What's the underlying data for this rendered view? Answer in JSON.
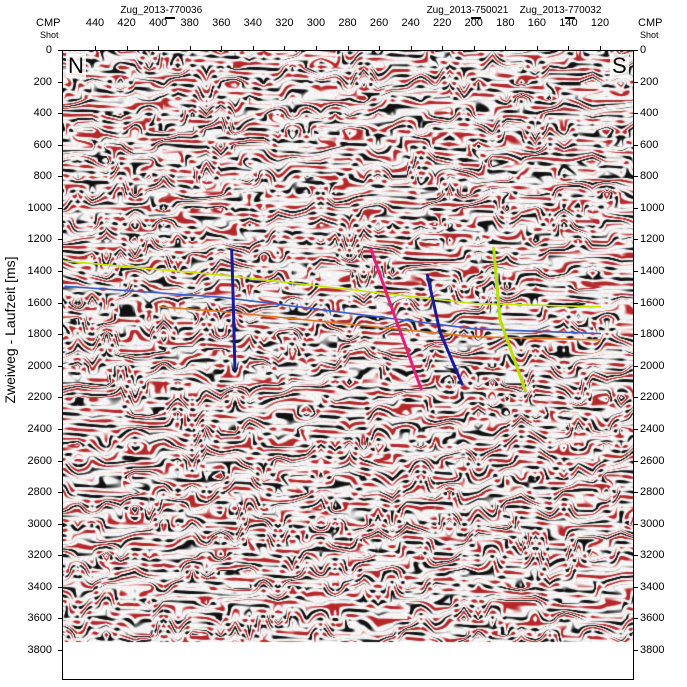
{
  "header": {
    "cmp_label_left": "CMP",
    "shot_label_left": "Shot",
    "cmp_label_right": "CMP",
    "shot_label_right": "Shot"
  },
  "cmp_ticks": [
    "440",
    "420",
    "400",
    "380",
    "360",
    "340",
    "320",
    "300",
    "280",
    "260",
    "240",
    "220",
    "200",
    "180",
    "160",
    "140",
    "120"
  ],
  "shot_points": [
    {
      "label": "Zug_2013-770036",
      "cmp": 398
    },
    {
      "label": "Zug_2013-750021",
      "cmp": 204
    },
    {
      "label": "Zug_2013-770032",
      "cmp": 145
    }
  ],
  "time_ticks": [
    "0",
    "200",
    "400",
    "600",
    "800",
    "1000",
    "1200",
    "1400",
    "1600",
    "1800",
    "2000",
    "2200",
    "2400",
    "2600",
    "2800",
    "3000",
    "3200",
    "3400",
    "3600",
    "3800"
  ],
  "y_axis_label": "Zweiweg - Laufzeit [ms]",
  "compass": {
    "left": "N",
    "right": "S"
  },
  "colors": {
    "reflector_yellow": "#c8e600",
    "reflector_blue": "#3a5fd0",
    "reflector_orange": "#e07820",
    "fault_blue": "#1a1a9c",
    "fault_magenta": "#e0207a",
    "fault_yellowgreen": "#b8e000",
    "seismic_red": "#b4282a",
    "seismic_black": "#111111"
  },
  "interpretation": {
    "horizons": [
      {
        "name": "yellow",
        "points": [
          [
            460,
            1330
          ],
          [
            360,
            1420
          ],
          [
            200,
            1600
          ],
          [
            120,
            1620
          ]
        ]
      },
      {
        "name": "blue",
        "points": [
          [
            460,
            1490
          ],
          [
            360,
            1560
          ],
          [
            200,
            1760
          ],
          [
            120,
            1790
          ]
        ]
      },
      {
        "name": "orange",
        "points": [
          [
            400,
            1620
          ],
          [
            360,
            1650
          ],
          [
            200,
            1810
          ],
          [
            120,
            1830
          ]
        ]
      }
    ],
    "faults": [
      {
        "name": "blue-1",
        "color": "fault_blue",
        "points": [
          [
            354,
            1260
          ],
          [
            353,
            1600
          ],
          [
            352,
            2010
          ]
        ]
      },
      {
        "name": "magenta",
        "color": "fault_magenta",
        "points": [
          [
            266,
            1250
          ],
          [
            250,
            1700
          ],
          [
            234,
            2140
          ]
        ]
      },
      {
        "name": "blue-2",
        "color": "fault_blue",
        "points": [
          [
            230,
            1420
          ],
          [
            222,
            1780
          ],
          [
            208,
            2110
          ]
        ]
      },
      {
        "name": "yellowgreen",
        "color": "fault_yellowgreen",
        "points": [
          [
            188,
            1250
          ],
          [
            184,
            1700
          ],
          [
            168,
            2150
          ]
        ]
      }
    ]
  }
}
